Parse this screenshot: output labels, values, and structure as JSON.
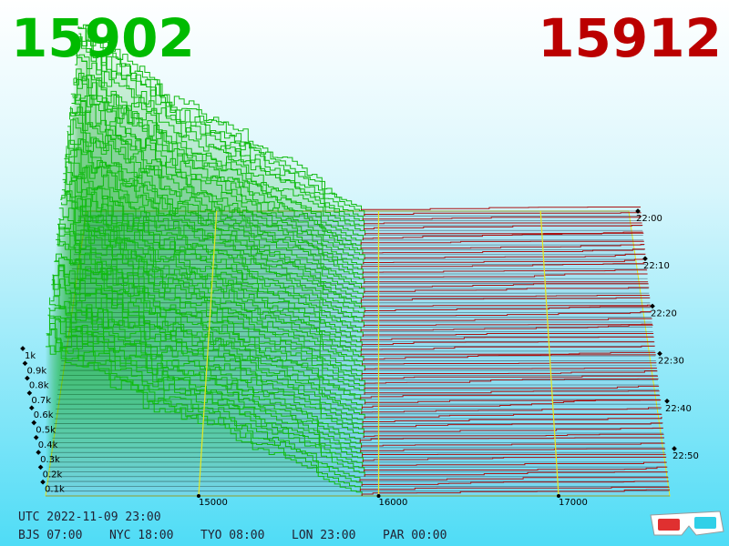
{
  "header": {
    "bid_price": "15902",
    "ask_price": "15912"
  },
  "axes": {
    "price_ticks": [
      15000,
      16000,
      17000
    ],
    "depth_ticks": [
      "1k",
      "0.9k",
      "0.8k",
      "0.7k",
      "0.6k",
      "0.5k",
      "0.4k",
      "0.3k",
      "0.2k",
      "0.1k"
    ],
    "time_ticks": [
      "22:00",
      "22:10",
      "22:20",
      "22:30",
      "22:40",
      "22:50"
    ]
  },
  "footer": {
    "utc": "UTC 2022-11-09 23:00",
    "clocks": [
      "BJS 07:00",
      "NYC 18:00",
      "TYO 08:00",
      "LON 23:00",
      "PAR 00:00"
    ]
  }
}
